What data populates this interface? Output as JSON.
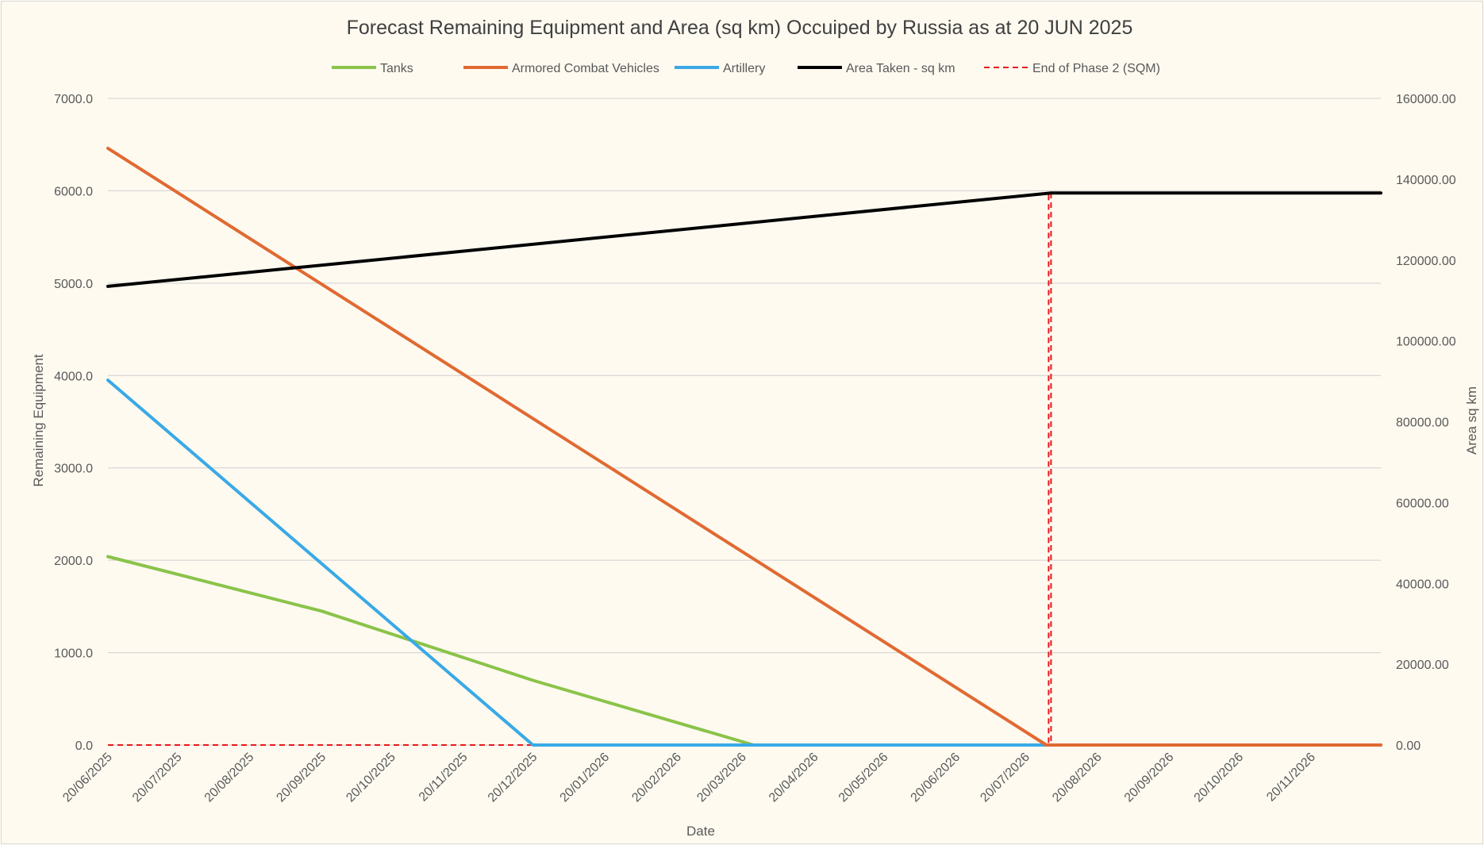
{
  "chart_data": {
    "type": "line",
    "title": "Forecast Remaining Equipment and Area (sq km) Occuiped by Russia as at 20 JUN 2025",
    "xlabel": "Date",
    "ylabel": "Remaining Equipment",
    "y2label": "Area sq km",
    "xlim": [
      "2025-06-20",
      "2026-12-20"
    ],
    "ylim": [
      0,
      7000
    ],
    "y2lim": [
      0,
      160000
    ],
    "x_ticks": [
      "20/06/2025",
      "20/07/2025",
      "20/08/2025",
      "20/09/2025",
      "20/10/2025",
      "20/11/2025",
      "20/12/2025",
      "20/01/2026",
      "20/02/2026",
      "20/03/2026",
      "20/04/2026",
      "20/05/2026",
      "20/06/2026",
      "20/07/2026",
      "20/08/2026",
      "20/09/2026",
      "20/10/2026",
      "20/11/2026"
    ],
    "y_ticks": [
      "0.0",
      "1000.0",
      "2000.0",
      "3000.0",
      "4000.0",
      "5000.0",
      "6000.0",
      "7000.0"
    ],
    "y2_ticks": [
      "0.00",
      "20000.00",
      "40000.00",
      "60000.00",
      "80000.00",
      "100000.00",
      "120000.00",
      "140000.00",
      "160000.00"
    ],
    "grid": true,
    "legend_position": "top",
    "series": [
      {
        "name": "Tanks",
        "axis": "left",
        "color": "#8bc34a",
        "dash": "solid",
        "points": [
          [
            "2025-06-20",
            2040
          ],
          [
            "2025-09-20",
            1450
          ],
          [
            "2025-12-20",
            700
          ],
          [
            "2026-03-25",
            0
          ],
          [
            "2026-12-20",
            0
          ]
        ]
      },
      {
        "name": "Armored Combat Vehicles",
        "axis": "left",
        "color": "#e06a32",
        "dash": "solid",
        "points": [
          [
            "2025-06-20",
            6460
          ],
          [
            "2026-07-29",
            0
          ],
          [
            "2026-12-20",
            0
          ]
        ]
      },
      {
        "name": "Artillery",
        "axis": "left",
        "color": "#3aa9e6",
        "dash": "solid",
        "points": [
          [
            "2025-06-20",
            3950
          ],
          [
            "2025-12-20",
            0
          ],
          [
            "2026-12-20",
            0
          ]
        ]
      },
      {
        "name": "Area Taken - sq km",
        "axis": "right",
        "color": "#000000",
        "dash": "solid",
        "points": [
          [
            "2025-06-20",
            113500
          ],
          [
            "2026-07-31",
            136600
          ],
          [
            "2026-12-20",
            136600
          ]
        ]
      },
      {
        "name": "End of Phase 2 (SQM)",
        "axis": "right",
        "color": "#e8191c",
        "dash": "dashed",
        "points": [
          [
            "2025-06-20",
            0
          ],
          [
            "2026-07-30",
            0
          ],
          [
            "2026-07-30",
            136600
          ],
          [
            "2026-07-31",
            136600
          ],
          [
            "2026-07-31",
            0
          ],
          [
            "2026-12-20",
            0
          ]
        ]
      }
    ]
  }
}
